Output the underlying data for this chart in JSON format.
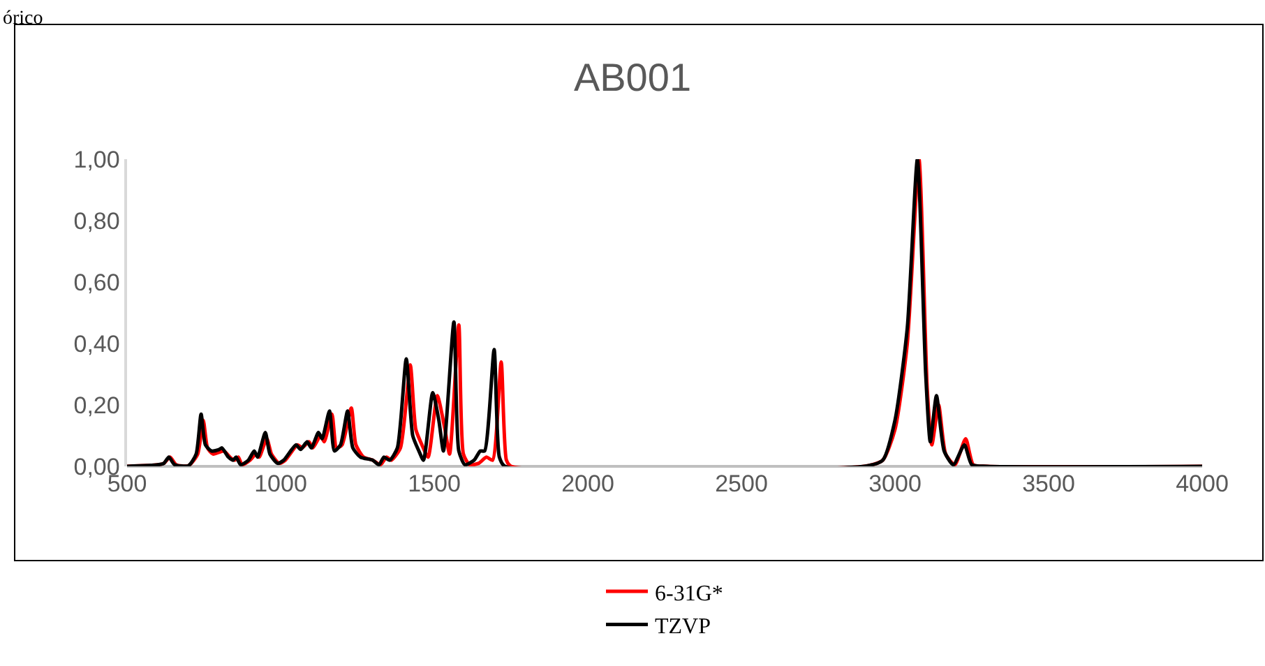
{
  "chart_data": {
    "type": "line",
    "title": "AB001",
    "annotations": [
      "órico"
    ],
    "xlim": [
      500,
      4000
    ],
    "xticks": [
      500,
      1000,
      1500,
      2000,
      2500,
      3000,
      3500,
      4000
    ],
    "ylim": [
      0,
      1
    ],
    "yticks": [
      {
        "value": 0,
        "label": "0,00"
      },
      {
        "value": 0.2,
        "label": "0,20"
      },
      {
        "value": 0.4,
        "label": "0,40"
      },
      {
        "value": 0.6,
        "label": "0,60"
      },
      {
        "value": 0.8,
        "label": "0,80"
      },
      {
        "value": 1,
        "label": "1,00"
      }
    ],
    "grid": false,
    "legend": "bottom",
    "marker": "none",
    "line_style": "solid",
    "series": [
      {
        "name": "6-31G*",
        "color": "#ff0000",
        "x": [
          500,
          600,
          620,
          640,
          660,
          700,
          730,
          748,
          762,
          780,
          815,
          835,
          850,
          862,
          875,
          900,
          920,
          930,
          955,
          970,
          995,
          1015,
          1055,
          1070,
          1092,
          1105,
          1130,
          1142,
          1167,
          1182,
          1200,
          1230,
          1245,
          1270,
          1300,
          1325,
          1345,
          1360,
          1390,
          1422,
          1440,
          1460,
          1480,
          1510,
          1535,
          1550,
          1580,
          1595,
          1615,
          1645,
          1670,
          1690,
          1718,
          1735,
          1750,
          2900,
          2960,
          3000,
          3040,
          3078,
          3105,
          3120,
          3142,
          3165,
          3195,
          3230,
          3255,
          3300,
          4000
        ],
        "values": [
          0,
          0.005,
          0.01,
          0.03,
          0.005,
          0.002,
          0.04,
          0.15,
          0.06,
          0.04,
          0.05,
          0.03,
          0.02,
          0.03,
          0.005,
          0.02,
          0.04,
          0.03,
          0.09,
          0.04,
          0.01,
          0.02,
          0.07,
          0.06,
          0.08,
          0.06,
          0.1,
          0.08,
          0.17,
          0.06,
          0.07,
          0.19,
          0.07,
          0.03,
          0.02,
          0.005,
          0.03,
          0.02,
          0.06,
          0.33,
          0.12,
          0.07,
          0.03,
          0.23,
          0.12,
          0.04,
          0.46,
          0.04,
          0.005,
          0.01,
          0.03,
          0.02,
          0.34,
          0.02,
          0,
          0,
          0.02,
          0.12,
          0.4,
          1.0,
          0.25,
          0.07,
          0.2,
          0.04,
          0.005,
          0.09,
          0.005,
          0,
          0
        ]
      },
      {
        "name": "TZVP",
        "color": "#000000",
        "x": [
          500,
          600,
          620,
          636,
          655,
          700,
          725,
          741,
          755,
          775,
          800,
          809,
          830,
          845,
          855,
          870,
          895,
          914,
          925,
          950,
          965,
          990,
          1010,
          1050,
          1065,
          1086,
          1100,
          1123,
          1135,
          1159,
          1175,
          1195,
          1218,
          1235,
          1260,
          1300,
          1320,
          1336,
          1355,
          1380,
          1409,
          1430,
          1450,
          1465,
          1495,
          1515,
          1530,
          1564,
          1580,
          1600,
          1630,
          1650,
          1664,
          1695,
          1712,
          1730,
          2900,
          2960,
          3000,
          3040,
          3073,
          3100,
          3115,
          3135,
          3160,
          3190,
          3226,
          3250,
          3300,
          4000
        ],
        "values": [
          0,
          0.005,
          0.01,
          0.03,
          0.005,
          0.002,
          0.04,
          0.17,
          0.07,
          0.05,
          0.055,
          0.06,
          0.03,
          0.02,
          0.03,
          0.005,
          0.02,
          0.05,
          0.03,
          0.11,
          0.04,
          0.01,
          0.02,
          0.07,
          0.055,
          0.08,
          0.06,
          0.11,
          0.09,
          0.18,
          0.05,
          0.07,
          0.18,
          0.06,
          0.03,
          0.02,
          0.005,
          0.03,
          0.02,
          0.06,
          0.35,
          0.1,
          0.05,
          0.02,
          0.24,
          0.15,
          0.05,
          0.47,
          0.05,
          0.005,
          0.02,
          0.05,
          0.05,
          0.38,
          0.03,
          0,
          0,
          0.02,
          0.15,
          0.45,
          1.0,
          0.3,
          0.08,
          0.23,
          0.05,
          0.005,
          0.07,
          0.005,
          0,
          0
        ]
      }
    ]
  }
}
